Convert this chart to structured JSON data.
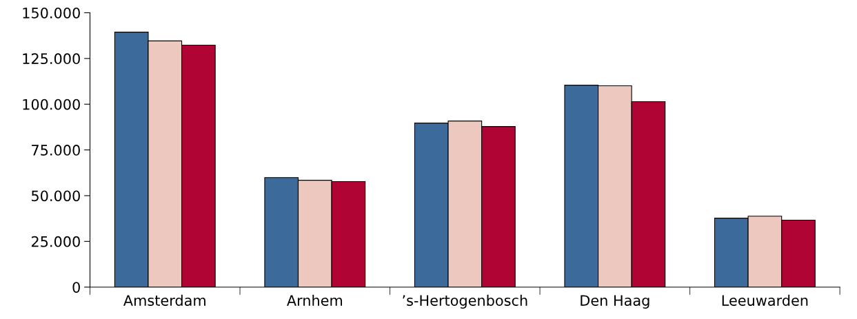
{
  "chart_data": {
    "type": "bar",
    "categories": [
      "Amsterdam",
      "Arnhem",
      "’s-Hertogenbosch",
      "Den Haag",
      "Leeuwarden"
    ],
    "series": [
      {
        "color": "#3b6a9b",
        "values": [
          139400,
          59900,
          89700,
          110400,
          37700
        ]
      },
      {
        "color": "#ecc8bf",
        "values": [
          134600,
          58400,
          90800,
          110100,
          38800
        ]
      },
      {
        "color": "#b00435",
        "values": [
          132300,
          57700,
          87800,
          101400,
          36600
        ]
      }
    ],
    "ylim": [
      0,
      150000
    ],
    "yticks": [
      {
        "value": 0,
        "label": "0"
      },
      {
        "value": 25000,
        "label": "25.000"
      },
      {
        "value": 50000,
        "label": "50.000"
      },
      {
        "value": 75000,
        "label": "75.000"
      },
      {
        "value": 100000,
        "label": "100.000"
      },
      {
        "value": 125000,
        "label": "125.000"
      },
      {
        "value": 150000,
        "label": "150.000"
      }
    ],
    "grid": false,
    "legend": false
  }
}
